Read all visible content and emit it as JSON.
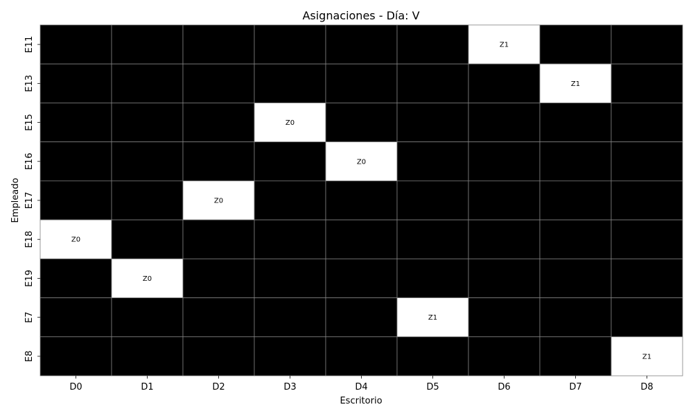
{
  "chart_data": {
    "type": "heatmap",
    "title": "Asignaciones - Día: V",
    "xlabel": "Escritorio",
    "ylabel": "Empleado",
    "x_categories": [
      "D0",
      "D1",
      "D2",
      "D3",
      "D4",
      "D5",
      "D6",
      "D7",
      "D8"
    ],
    "y_categories": [
      "E11",
      "E13",
      "E15",
      "E16",
      "E17",
      "E18",
      "E19",
      "E7",
      "E8"
    ],
    "assignments": [
      {
        "employee": "E11",
        "desk": "D6",
        "zone": "Z1"
      },
      {
        "employee": "E13",
        "desk": "D7",
        "zone": "Z1"
      },
      {
        "employee": "E15",
        "desk": "D3",
        "zone": "Z0"
      },
      {
        "employee": "E16",
        "desk": "D4",
        "zone": "Z0"
      },
      {
        "employee": "E17",
        "desk": "D2",
        "zone": "Z0"
      },
      {
        "employee": "E18",
        "desk": "D0",
        "zone": "Z0"
      },
      {
        "employee": "E19",
        "desk": "D1",
        "zone": "Z0"
      },
      {
        "employee": "E7",
        "desk": "D5",
        "zone": "Z1"
      },
      {
        "employee": "E8",
        "desk": "D8",
        "zone": "Z1"
      }
    ],
    "colors": {
      "unassigned": "#000000",
      "assigned": "#ffffff",
      "gridline": "#808080"
    },
    "grid": true,
    "legend": "none"
  }
}
